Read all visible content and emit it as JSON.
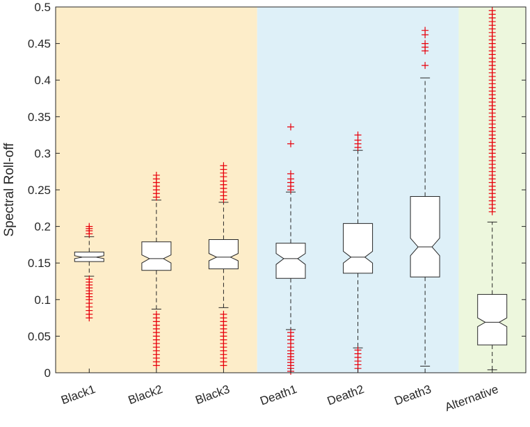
{
  "chart_data": {
    "type": "box",
    "title": "",
    "xlabel": "",
    "ylabel": "Spectral Roll-off",
    "ylim": [
      0,
      0.5
    ],
    "yticks": [
      0,
      0.05,
      0.1,
      0.15,
      0.2,
      0.25,
      0.3,
      0.35,
      0.4,
      0.45,
      0.5
    ],
    "ytick_labels": [
      "0",
      "0.05",
      "0.1",
      "0.15",
      "0.2",
      "0.25",
      "0.3",
      "0.35",
      "0.4",
      "0.45",
      "0.5"
    ],
    "notched": true,
    "outlier_color": "#e8000b",
    "groups": [
      {
        "name": "Black",
        "color": "#fdedc9",
        "from": 0,
        "to": 2
      },
      {
        "name": "Death",
        "color": "#def0f8",
        "from": 3,
        "to": 5
      },
      {
        "name": "Alternative",
        "color": "#edf7dd",
        "from": 6,
        "to": 6
      }
    ],
    "categories": [
      "Black1",
      "Black2",
      "Black3",
      "Death1",
      "Death2",
      "Death3",
      "Alternative"
    ],
    "boxes": [
      {
        "label": "Black1",
        "whisker_low": 0.132,
        "q1": 0.152,
        "median": 0.158,
        "q3": 0.165,
        "whisker_high": 0.186,
        "notch_low": 0.156,
        "notch_high": 0.16,
        "outliers": [
          0.075,
          0.08,
          0.085,
          0.09,
          0.095,
          0.1,
          0.104,
          0.108,
          0.112,
          0.116,
          0.12,
          0.124,
          0.128,
          0.19,
          0.194,
          0.197,
          0.2
        ]
      },
      {
        "label": "Black2",
        "whisker_low": 0.087,
        "q1": 0.14,
        "median": 0.156,
        "q3": 0.179,
        "whisker_high": 0.236,
        "notch_low": 0.15,
        "notch_high": 0.161,
        "outliers": [
          0.01,
          0.015,
          0.02,
          0.025,
          0.03,
          0.035,
          0.04,
          0.045,
          0.05,
          0.055,
          0.06,
          0.065,
          0.07,
          0.075,
          0.08,
          0.24,
          0.245,
          0.25,
          0.255,
          0.26,
          0.265,
          0.27
        ]
      },
      {
        "label": "Black3",
        "whisker_low": 0.089,
        "q1": 0.142,
        "median": 0.158,
        "q3": 0.182,
        "whisker_high": 0.233,
        "notch_low": 0.153,
        "notch_high": 0.163,
        "outliers": [
          0.01,
          0.015,
          0.02,
          0.025,
          0.03,
          0.035,
          0.04,
          0.045,
          0.05,
          0.055,
          0.06,
          0.065,
          0.07,
          0.075,
          0.08,
          0.237,
          0.242,
          0.247,
          0.252,
          0.257,
          0.262,
          0.268,
          0.273,
          0.278,
          0.283
        ]
      },
      {
        "label": "Death1",
        "whisker_low": 0.059,
        "q1": 0.129,
        "median": 0.156,
        "q3": 0.177,
        "whisker_high": 0.247,
        "notch_low": 0.148,
        "notch_high": 0.163,
        "outliers": [
          0.002,
          0.006,
          0.01,
          0.014,
          0.018,
          0.022,
          0.026,
          0.03,
          0.035,
          0.04,
          0.045,
          0.05,
          0.055,
          0.25,
          0.255,
          0.26,
          0.265,
          0.272,
          0.313,
          0.336
        ]
      },
      {
        "label": "Death2",
        "whisker_low": 0.034,
        "q1": 0.136,
        "median": 0.158,
        "q3": 0.204,
        "whisker_high": 0.304,
        "notch_low": 0.15,
        "notch_high": 0.166,
        "outliers": [
          0.006,
          0.011,
          0.016,
          0.021,
          0.026,
          0.031,
          0.308,
          0.313,
          0.318,
          0.325
        ]
      },
      {
        "label": "Death3",
        "whisker_low": 0.009,
        "q1": 0.131,
        "median": 0.172,
        "q3": 0.241,
        "whisker_high": 0.403,
        "notch_low": 0.16,
        "notch_high": 0.184,
        "outliers": [
          0.42,
          0.44,
          0.445,
          0.45,
          0.462,
          0.468
        ]
      },
      {
        "label": "Alternative",
        "whisker_low": 0.004,
        "q1": 0.038,
        "median": 0.069,
        "q3": 0.107,
        "whisker_high": 0.206,
        "notch_low": 0.063,
        "notch_high": 0.075,
        "outliers": [
          0.22,
          0.225,
          0.23,
          0.235,
          0.24,
          0.245,
          0.25,
          0.255,
          0.26,
          0.265,
          0.27,
          0.275,
          0.28,
          0.285,
          0.29,
          0.295,
          0.3,
          0.305,
          0.31,
          0.315,
          0.32,
          0.325,
          0.33,
          0.335,
          0.34,
          0.345,
          0.35,
          0.355,
          0.36,
          0.365,
          0.37,
          0.375,
          0.38,
          0.385,
          0.39,
          0.395,
          0.4,
          0.405,
          0.41,
          0.415,
          0.42,
          0.425,
          0.43,
          0.435,
          0.44,
          0.445,
          0.45,
          0.455,
          0.46,
          0.465,
          0.47,
          0.475,
          0.48,
          0.485,
          0.49,
          0.495
        ]
      }
    ]
  }
}
